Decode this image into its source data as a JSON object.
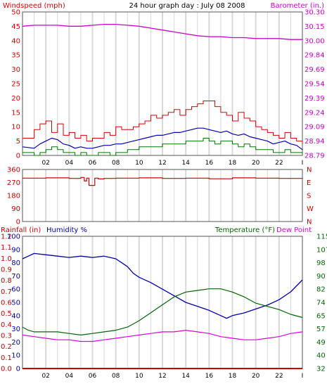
{
  "colors": {
    "wind": "#dd0000",
    "gust": "#dd0000",
    "windAvg": "#0000bb",
    "windMin": "#007700",
    "baro": "#cc00cc",
    "dir": "#cc0000",
    "humidity": "#0000aa",
    "temperature": "#006600",
    "dewpoint": "#dd00dd",
    "rain": "#cc0000",
    "grid": "#d8d8d8",
    "border": "#555555",
    "axisText": "#000000"
  },
  "chart_data": [
    {
      "type": "line",
      "title": "24 hour graph day : July 08 2008",
      "ylabel": "Windspeed (mph)",
      "y2label": "Barometer (in.)",
      "x_ticks": [
        "02",
        "04",
        "06",
        "08",
        "10",
        "12",
        "14",
        "16",
        "18",
        "20",
        "22",
        "I"
      ],
      "yticks": [
        "0",
        "5",
        "10",
        "15",
        "20",
        "25",
        "30",
        "35",
        "40",
        "45",
        "50"
      ],
      "y2ticks": [
        "28.79",
        "28.94",
        "29.09",
        "29.24",
        "29.39",
        "29.54",
        "29.69",
        "29.84",
        "30.00",
        "30.15",
        "30.30"
      ],
      "ylim": [
        0,
        50
      ],
      "y2lim": [
        28.79,
        30.3
      ],
      "xlim": [
        0,
        24
      ],
      "grid": "vertical",
      "series": [
        {
          "key": "gust",
          "x": [
            0,
            1,
            1.5,
            2,
            2.5,
            3,
            3.5,
            4,
            4.5,
            5,
            5.5,
            6,
            6.5,
            7,
            7.5,
            8,
            8.5,
            9,
            9.5,
            10,
            10.5,
            11,
            11.5,
            12,
            12.5,
            13,
            13.5,
            14,
            14.5,
            15,
            15.5,
            16,
            16.5,
            17,
            17.5,
            18,
            18.5,
            19,
            19.5,
            20,
            20.5,
            21,
            21.5,
            22,
            22.5,
            23,
            23.5,
            24
          ],
          "values": [
            6,
            9,
            11,
            12,
            8,
            11,
            7,
            8,
            6,
            7,
            5,
            6,
            6,
            8,
            7,
            10,
            9,
            9,
            10,
            11,
            12,
            14,
            13,
            14,
            15,
            16,
            14,
            16,
            17,
            18,
            19,
            19,
            17,
            15,
            14,
            12,
            15,
            13,
            12,
            10,
            9,
            8,
            7,
            6,
            8,
            6,
            5,
            4
          ]
        },
        {
          "key": "windAvg",
          "x": [
            0,
            1,
            1.5,
            2,
            2.5,
            3,
            3.5,
            4,
            4.5,
            5,
            5.5,
            6,
            6.5,
            7,
            7.5,
            8,
            8.5,
            9,
            9.5,
            10,
            10.5,
            11,
            11.5,
            12,
            12.5,
            13,
            13.5,
            14,
            14.5,
            15,
            15.5,
            16,
            16.5,
            17,
            17.5,
            18,
            18.5,
            19,
            19.5,
            20,
            20.5,
            21,
            21.5,
            22,
            22.5,
            23,
            23.5,
            24
          ],
          "values": [
            3,
            2.5,
            4,
            5,
            6,
            5.5,
            4,
            3.5,
            2.5,
            3,
            2.5,
            2.5,
            3,
            3.5,
            3.5,
            4,
            4,
            4.5,
            5,
            5.5,
            6,
            6.5,
            7,
            7,
            7.5,
            8,
            8,
            8.5,
            9,
            9.5,
            9.5,
            9,
            8.5,
            8,
            8.5,
            7.5,
            7,
            7.5,
            6.5,
            6,
            5.5,
            5,
            4,
            4.5,
            5,
            4,
            3.5,
            2
          ]
        },
        {
          "key": "windMin",
          "x": [
            0,
            1,
            1.5,
            2,
            2.5,
            3,
            3.5,
            4,
            4.5,
            5,
            5.5,
            6,
            6.5,
            7,
            7.5,
            8,
            8.5,
            9,
            9.5,
            10,
            10.5,
            11,
            11.5,
            12,
            12.5,
            13,
            13.5,
            14,
            14.5,
            15,
            15.5,
            16,
            16.5,
            17,
            17.5,
            18,
            18.5,
            19,
            19.5,
            20,
            20.5,
            21,
            21.5,
            22,
            22.5,
            23,
            23.5,
            24
          ],
          "values": [
            1,
            0,
            1,
            2,
            3,
            2,
            1,
            1,
            0,
            1,
            0,
            0,
            1,
            1,
            0,
            1,
            1,
            2,
            2,
            3,
            3,
            3,
            3,
            4,
            4,
            4,
            4,
            5,
            5,
            5,
            6,
            5,
            4,
            5,
            5,
            4,
            3,
            4,
            3,
            2,
            2,
            2,
            1,
            1,
            2,
            1,
            1,
            0
          ]
        },
        {
          "key": "baro",
          "axis": "y2",
          "x": [
            0,
            1,
            2,
            3,
            4,
            5,
            6,
            7,
            8,
            9,
            10,
            11,
            12,
            13,
            14,
            15,
            16,
            17,
            18,
            19,
            20,
            21,
            22,
            23,
            24
          ],
          "values": [
            30.15,
            30.16,
            30.16,
            30.16,
            30.15,
            30.15,
            30.16,
            30.17,
            30.17,
            30.16,
            30.15,
            30.13,
            30.11,
            30.09,
            30.07,
            30.05,
            30.04,
            30.04,
            30.03,
            30.03,
            30.02,
            30.02,
            30.02,
            30.01,
            30.01
          ]
        }
      ]
    },
    {
      "type": "line",
      "ylabel": "",
      "yticks": [
        "0",
        "90",
        "180",
        "270",
        "360"
      ],
      "y2ticks": [
        "N",
        "W",
        "S",
        "E",
        "N"
      ],
      "ylim": [
        0,
        360
      ],
      "xlim": [
        0,
        24
      ],
      "series": [
        {
          "key": "dir",
          "x": [
            0,
            2,
            4,
            5,
            5.3,
            5.5,
            5.7,
            6,
            6.2,
            6.5,
            7,
            8,
            10,
            12,
            14,
            16,
            18,
            20,
            22,
            24
          ],
          "values": [
            300,
            302,
            298,
            305,
            280,
            300,
            250,
            250,
            300,
            295,
            298,
            300,
            302,
            298,
            300,
            296,
            302,
            300,
            298,
            300
          ]
        }
      ]
    },
    {
      "type": "line",
      "ylabel": "Rainfall (in)",
      "ylabel2": "Humidity %",
      "y2label": "Temperature (°F)",
      "y3label": "Dew Point",
      "x_ticks": [
        "02",
        "04",
        "06",
        "08",
        "10",
        "12",
        "14",
        "16",
        "18",
        "20",
        "22",
        "I"
      ],
      "rain_ticks": [
        "0.0",
        "0.1",
        "0.2",
        "0.3",
        "0.4",
        "0.5",
        "0.6",
        "0.7",
        "0.8",
        "0.9",
        "1.0",
        "1.1",
        "1.2"
      ],
      "hum_ticks": [
        "0",
        "10",
        "20",
        "30",
        "40",
        "50",
        "60",
        "70",
        "80",
        "90",
        "100"
      ],
      "temp_ticks": [
        "32",
        "40",
        "49",
        "57",
        "65",
        "74",
        "82",
        "90",
        "98",
        "107",
        "115"
      ],
      "ylim": [
        0,
        100
      ],
      "y2lim": [
        32,
        115
      ],
      "xlim": [
        0,
        24
      ],
      "series": [
        {
          "key": "humidity",
          "x": [
            0,
            0.5,
            1,
            2,
            3,
            4,
            5,
            6,
            7,
            8,
            8.5,
            9,
            9.5,
            10,
            11,
            12,
            13,
            14,
            15,
            16,
            17,
            17.5,
            18,
            19,
            20,
            21,
            22,
            23,
            24
          ],
          "values": [
            83,
            85,
            87,
            86,
            85,
            84,
            85,
            84,
            85,
            83,
            80,
            77,
            72,
            69,
            65,
            60,
            55,
            50,
            47,
            44,
            40,
            38,
            40,
            42,
            45,
            48,
            52,
            58,
            67
          ]
        },
        {
          "key": "temperature",
          "axis": "y2",
          "x": [
            0,
            0.5,
            1,
            2,
            3,
            4,
            5,
            6,
            7,
            8,
            9,
            10,
            11,
            12,
            13,
            14,
            15,
            16,
            17,
            18,
            19,
            20,
            21,
            22,
            23,
            24
          ],
          "values": [
            58,
            56,
            55,
            55,
            55,
            54,
            53,
            54,
            55,
            56,
            58,
            62,
            67,
            72,
            77,
            80,
            81,
            82,
            82,
            80,
            77,
            73,
            71,
            69,
            66,
            64
          ]
        },
        {
          "key": "dewpoint",
          "axis": "y2",
          "x": [
            0,
            1,
            2,
            3,
            4,
            5,
            6,
            7,
            8,
            9,
            10,
            11,
            12,
            13,
            14,
            15,
            16,
            17,
            18,
            19,
            20,
            21,
            22,
            23,
            24
          ],
          "values": [
            53,
            52,
            51,
            50,
            50,
            49,
            49,
            50,
            51,
            52,
            53,
            54,
            55,
            55,
            56,
            55,
            54,
            52,
            51,
            50,
            50,
            51,
            52,
            54,
            55
          ]
        },
        {
          "key": "rain",
          "x": [
            0,
            24
          ],
          "values": [
            0,
            0
          ]
        }
      ]
    }
  ]
}
